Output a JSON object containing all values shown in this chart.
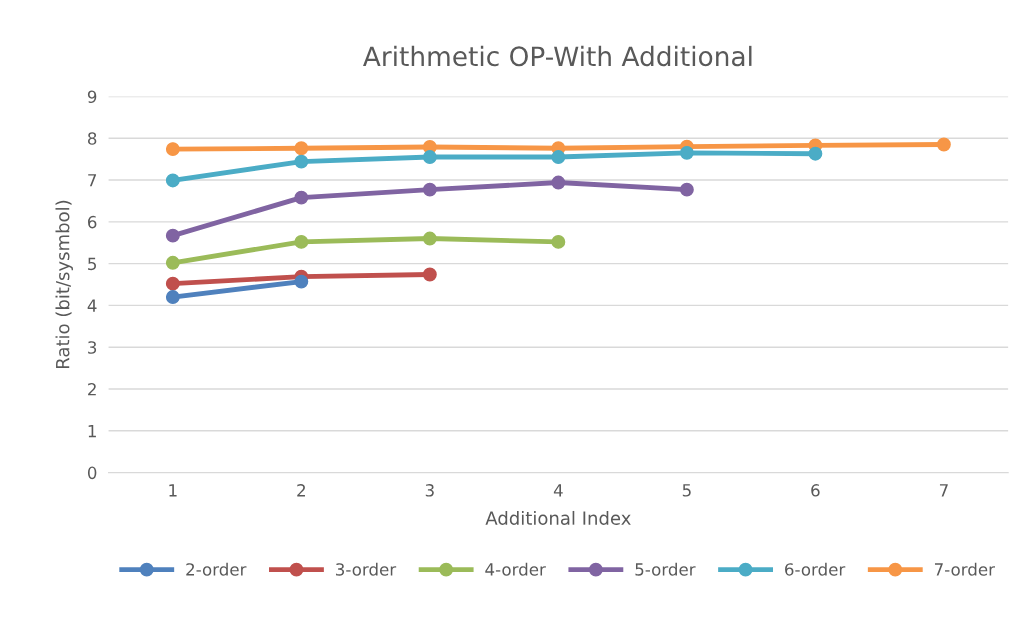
{
  "chart_data": {
    "type": "line",
    "title": "Arithmetic OP-With Additional",
    "xlabel": "Additional Index",
    "ylabel": "Ratio (bit/sysmbol)",
    "categories": [
      "1",
      "2",
      "3",
      "4",
      "5",
      "6",
      "7"
    ],
    "series": [
      {
        "name": "2-order",
        "color": "#4f81bd",
        "values": [
          4.2,
          4.57,
          null,
          null,
          null,
          null,
          null
        ]
      },
      {
        "name": "3-order",
        "color": "#c0504d",
        "values": [
          4.52,
          4.69,
          4.74,
          null,
          null,
          null,
          null
        ]
      },
      {
        "name": "4-order",
        "color": "#9bbb59",
        "values": [
          5.02,
          5.52,
          5.6,
          5.52,
          null,
          null,
          null
        ]
      },
      {
        "name": "5-order",
        "color": "#8064a2",
        "values": [
          5.67,
          6.58,
          6.77,
          6.94,
          6.77,
          null,
          null
        ]
      },
      {
        "name": "6-order",
        "color": "#4bacc6",
        "values": [
          6.99,
          7.44,
          7.55,
          7.55,
          7.65,
          7.63,
          null
        ]
      },
      {
        "name": "7-order",
        "color": "#f79646",
        "values": [
          7.74,
          7.76,
          7.79,
          7.76,
          7.8,
          7.83,
          7.85
        ]
      }
    ],
    "ylim": [
      0,
      9
    ],
    "yticks": [
      0,
      1,
      2,
      3,
      4,
      5,
      6,
      7,
      8,
      9
    ],
    "grid": "y",
    "legend": "bottom",
    "marker": "circle",
    "line_style": "solid"
  }
}
